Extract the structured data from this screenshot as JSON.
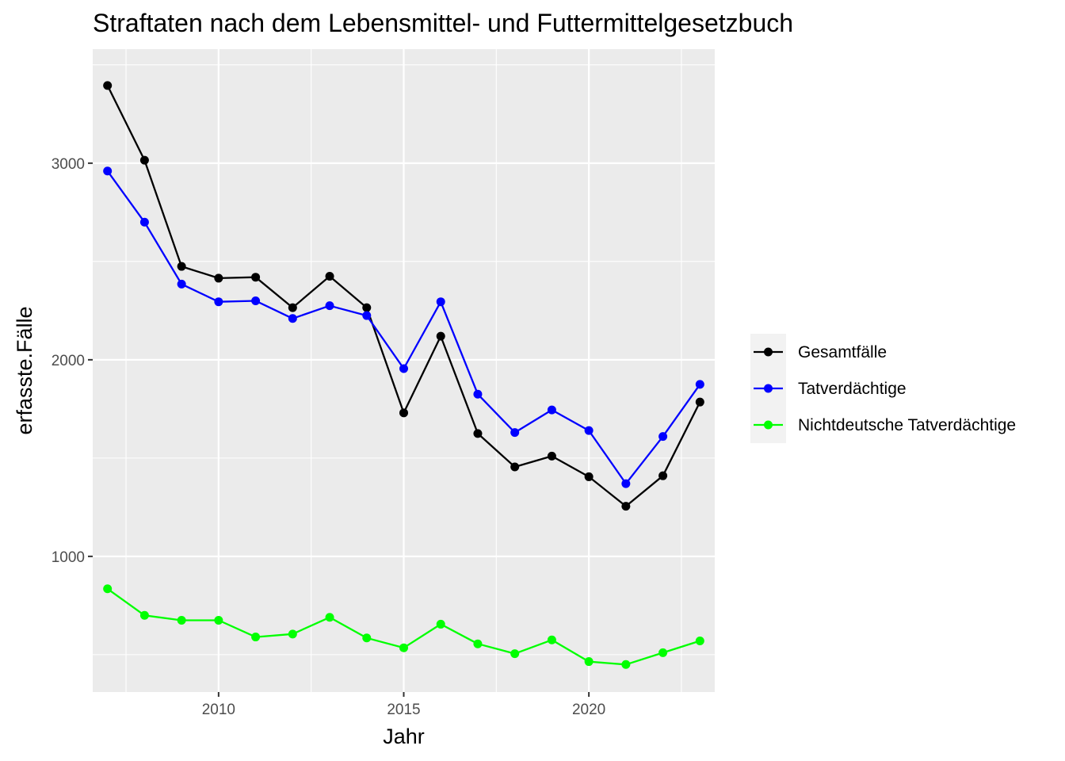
{
  "chart_data": {
    "type": "line",
    "title": "Straftaten nach dem Lebensmittel- und Futtermittelgesetzbuch",
    "xlabel": "Jahr",
    "ylabel": "erfasste.Fälle",
    "xlim": [
      2006.6,
      2023.4
    ],
    "ylim": [
      310,
      3580
    ],
    "x_ticks": [
      2010,
      2015,
      2020
    ],
    "x_minor_ticks": [
      2007.5,
      2012.5,
      2017.5,
      2022.5
    ],
    "y_ticks": [
      1000,
      2000,
      3000
    ],
    "y_minor_ticks": [
      500,
      1500,
      2500,
      3500
    ],
    "grid": true,
    "legend_position": "right",
    "x": [
      2007,
      2008,
      2009,
      2010,
      2011,
      2012,
      2013,
      2014,
      2015,
      2016,
      2017,
      2018,
      2019,
      2020,
      2021,
      2022,
      2023
    ],
    "series": [
      {
        "name": "Gesamtfälle",
        "color": "#000000",
        "values": [
          3395,
          3015,
          2475,
          2415,
          2420,
          2265,
          2425,
          2265,
          1730,
          2120,
          1625,
          1455,
          1510,
          1405,
          1255,
          1410,
          1785
        ]
      },
      {
        "name": "Tatverdächtige",
        "color": "#0000ff",
        "values": [
          2960,
          2700,
          2385,
          2295,
          2300,
          2210,
          2275,
          2225,
          1955,
          2295,
          1825,
          1630,
          1745,
          1640,
          1370,
          1610,
          1875
        ]
      },
      {
        "name": "Nichtdeutsche Tatverdächtige",
        "color": "#00ff00",
        "values": [
          835,
          700,
          675,
          675,
          590,
          605,
          690,
          585,
          535,
          655,
          555,
          505,
          575,
          465,
          450,
          510,
          570
        ]
      }
    ]
  }
}
